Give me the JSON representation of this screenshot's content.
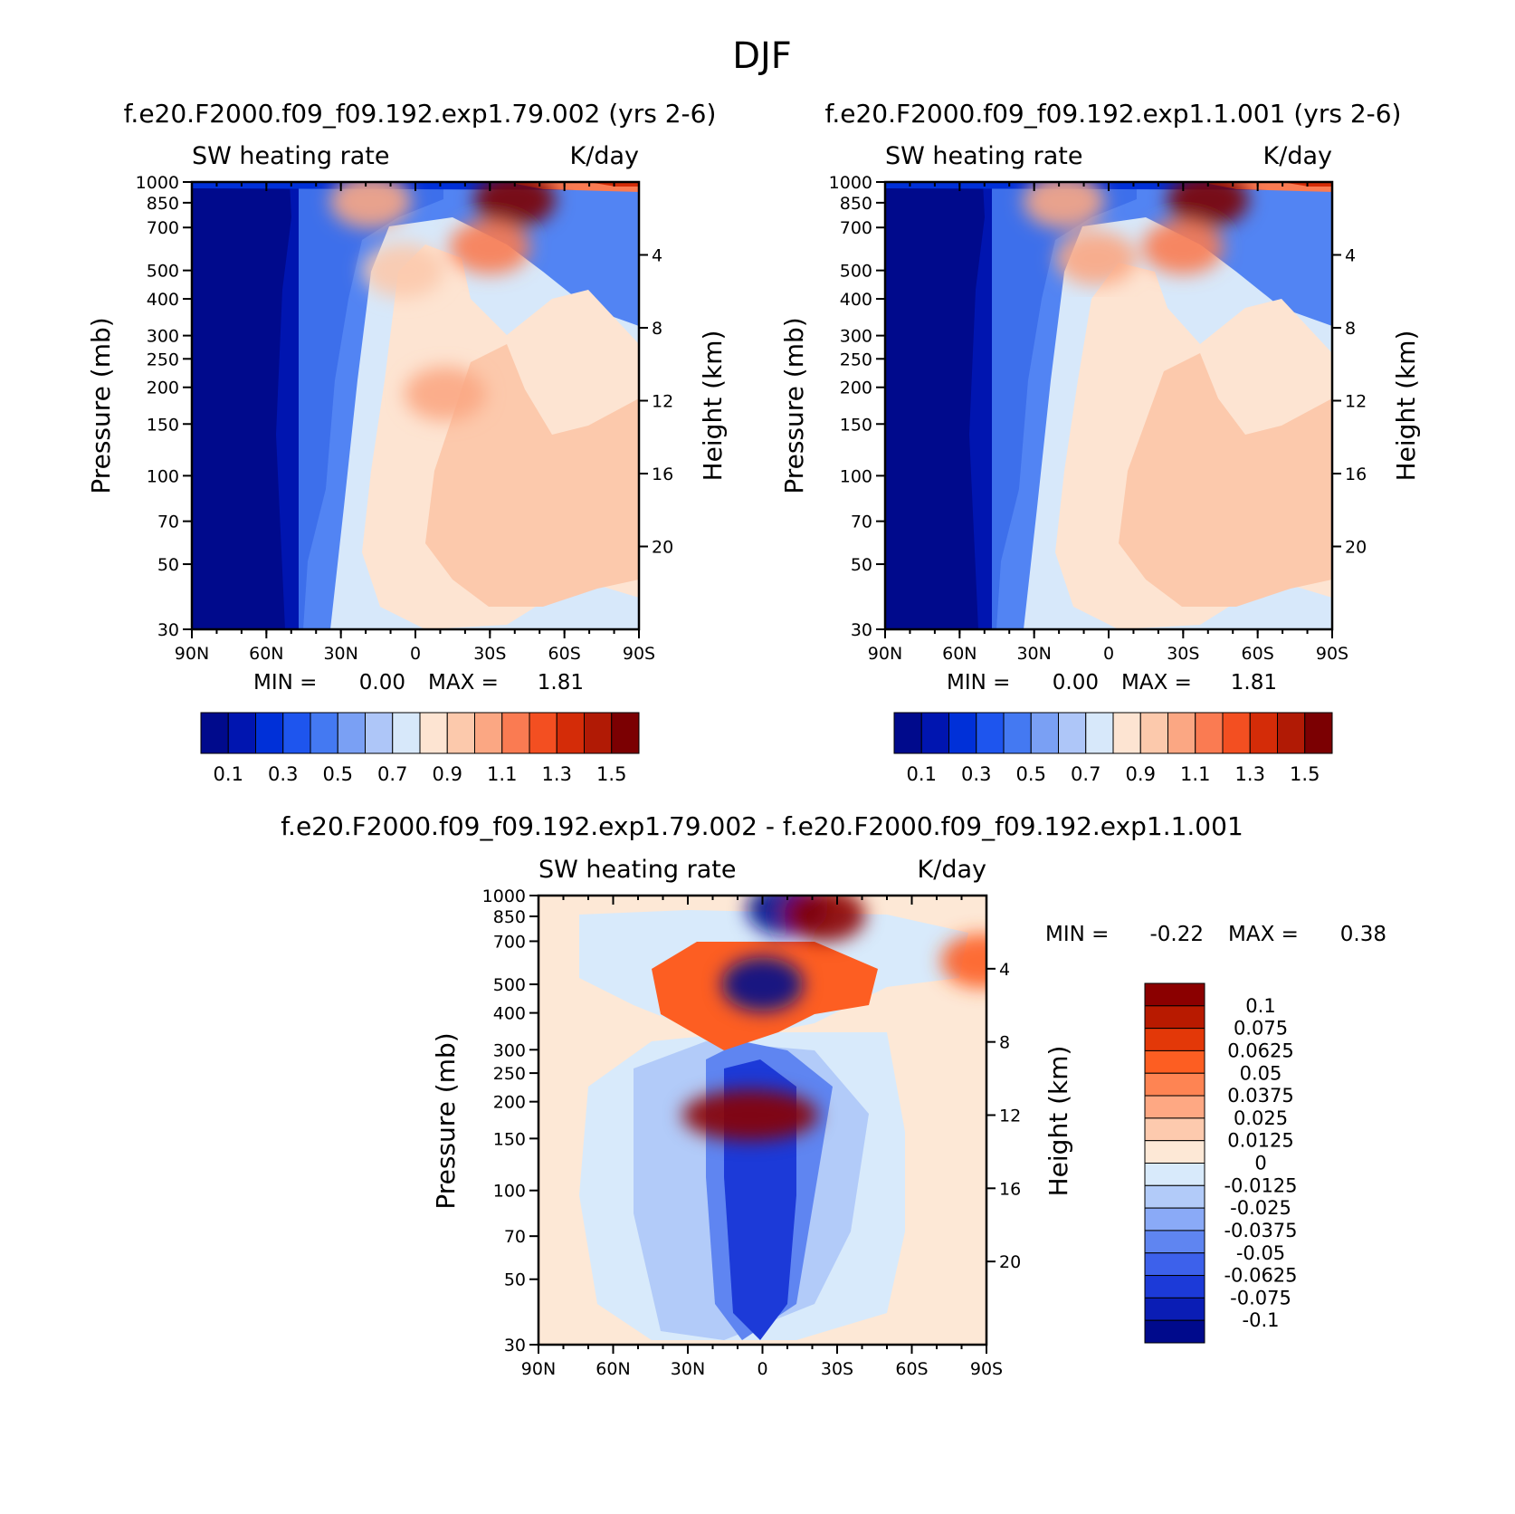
{
  "figure_title": "DJF",
  "chart_data": [
    {
      "type": "heatmap",
      "title": "f.e20.F2000.f09_f09.192.exp1.79.002 (yrs 2-6)",
      "left_subtitle": "SW heating rate",
      "right_subtitle": "K/day",
      "ylabel": "Pressure (mb)",
      "ylabel_right": "Height (km)",
      "x_ticks": [
        "90N",
        "60N",
        "30N",
        "0",
        "30S",
        "60S",
        "90S"
      ],
      "y_ticks": [
        30,
        50,
        70,
        100,
        150,
        200,
        250,
        300,
        400,
        500,
        700,
        850,
        1000
      ],
      "height_ticks": [
        20,
        16,
        12,
        8,
        4
      ],
      "stats": {
        "min_label": "MIN =",
        "min_value": "0.00",
        "max_label": "MAX =",
        "max_value": "1.81"
      },
      "colorbar_labels": [
        "0.1",
        "0.3",
        "0.5",
        "0.7",
        "0.9",
        "1.1",
        "1.3",
        "1.5"
      ],
      "features": [
        {
          "lat": -40,
          "p": 870,
          "value": 1.6
        },
        {
          "lat": -30,
          "p": 600,
          "value": 1.1
        },
        {
          "lat": 5,
          "p": 500,
          "value": 0.9
        },
        {
          "lat": -12,
          "p": 190,
          "value": 1.0
        },
        {
          "lat": 18,
          "p": 860,
          "value": 1.0
        }
      ]
    },
    {
      "type": "heatmap",
      "title": "f.e20.F2000.f09_f09.192.exp1.1.001 (yrs 2-6)",
      "left_subtitle": "SW heating rate",
      "right_subtitle": "K/day",
      "ylabel": "Pressure (mb)",
      "ylabel_right": "Height (km)",
      "x_ticks": [
        "90N",
        "60N",
        "30N",
        "0",
        "30S",
        "60S",
        "90S"
      ],
      "y_ticks": [
        30,
        50,
        70,
        100,
        150,
        200,
        250,
        300,
        400,
        500,
        700,
        850,
        1000
      ],
      "height_ticks": [
        20,
        16,
        12,
        8,
        4
      ],
      "stats": {
        "min_label": "MIN =",
        "min_value": "0.00",
        "max_label": "MAX =",
        "max_value": "1.81"
      },
      "colorbar_labels": [
        "0.1",
        "0.3",
        "0.5",
        "0.7",
        "0.9",
        "1.1",
        "1.3",
        "1.5"
      ],
      "features": [
        {
          "lat": -40,
          "p": 870,
          "value": 1.6
        },
        {
          "lat": -30,
          "p": 600,
          "value": 1.1
        },
        {
          "lat": 5,
          "p": 550,
          "value": 1.0
        },
        {
          "lat": 18,
          "p": 860,
          "value": 1.0
        }
      ]
    },
    {
      "type": "heatmap",
      "title": "f.e20.F2000.f09_f09.192.exp1.79.002 - f.e20.F2000.f09_f09.192.exp1.1.001",
      "left_subtitle": "SW heating rate",
      "right_subtitle": "K/day",
      "ylabel": "Pressure (mb)",
      "ylabel_right": "Height (km)",
      "x_ticks": [
        "90N",
        "60N",
        "30N",
        "0",
        "30S",
        "60S",
        "90S"
      ],
      "y_ticks": [
        30,
        50,
        70,
        100,
        150,
        200,
        250,
        300,
        400,
        500,
        700,
        850,
        1000
      ],
      "height_ticks": [
        20,
        16,
        12,
        8,
        4
      ],
      "stats": {
        "min_label": "MIN =",
        "min_value": "-0.22",
        "max_label": "MAX =",
        "max_value": "0.38"
      },
      "colorbar_labels": [
        "0.1",
        "0.075",
        "0.0625",
        "0.05",
        "0.0375",
        "0.025",
        "0.0125",
        "0",
        "-0.0125",
        "-0.025",
        "-0.0375",
        "-0.05",
        "-0.0625",
        "-0.075",
        "-0.1"
      ],
      "features": [
        {
          "lat": 5,
          "p": 180,
          "value": 0.3
        },
        {
          "lat": 0,
          "p": 500,
          "value": -0.12
        },
        {
          "lat": -10,
          "p": 900,
          "value": -0.12
        },
        {
          "lat": -25,
          "p": 860,
          "value": 0.1
        },
        {
          "lat": -88,
          "p": 600,
          "value": 0.06
        }
      ]
    }
  ],
  "colors": {
    "sequential": [
      "#000a8c",
      "#0015b0",
      "#0030d8",
      "#1e55ee",
      "#4479f2",
      "#7aa0f4",
      "#aec6f8",
      "#d7e8fa",
      "#fde4d2",
      "#fcc9ac",
      "#fba783",
      "#fa7b52",
      "#f34f21",
      "#d42c08",
      "#b11a05",
      "#7b0002"
    ],
    "diverging": [
      "#8b0000",
      "#b81a00",
      "#e33808",
      "#fd5e22",
      "#fe8453",
      "#fea883",
      "#fdcaae",
      "#fde8d6",
      "#d8eafb",
      "#b2cbf9",
      "#8aaaf7",
      "#5f85f1",
      "#3d61eb",
      "#1c3ad8",
      "#0a1db5",
      "#000a8c"
    ]
  }
}
